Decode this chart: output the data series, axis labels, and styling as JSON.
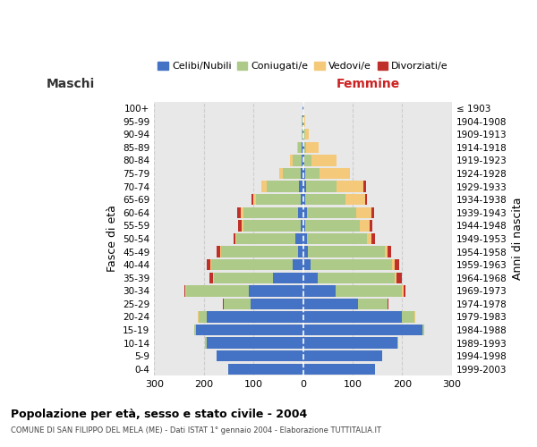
{
  "age_groups": [
    "0-4",
    "5-9",
    "10-14",
    "15-19",
    "20-24",
    "25-29",
    "30-34",
    "35-39",
    "40-44",
    "45-49",
    "50-54",
    "55-59",
    "60-64",
    "65-69",
    "70-74",
    "75-79",
    "80-84",
    "85-89",
    "90-94",
    "95-99",
    "100+"
  ],
  "birth_years": [
    "1999-2003",
    "1994-1998",
    "1989-1993",
    "1984-1988",
    "1979-1983",
    "1974-1978",
    "1969-1973",
    "1964-1968",
    "1959-1963",
    "1954-1958",
    "1949-1953",
    "1944-1948",
    "1939-1943",
    "1934-1938",
    "1929-1933",
    "1924-1928",
    "1919-1923",
    "1914-1918",
    "1909-1913",
    "1904-1908",
    "≤ 1903"
  ],
  "males": {
    "celibi": [
      150,
      175,
      195,
      215,
      195,
      105,
      110,
      60,
      20,
      10,
      15,
      5,
      10,
      5,
      9,
      5,
      3,
      2,
      1,
      1,
      1
    ],
    "coniugati": [
      0,
      0,
      2,
      5,
      15,
      55,
      125,
      120,
      165,
      155,
      120,
      115,
      110,
      90,
      65,
      35,
      18,
      8,
      2,
      1,
      0
    ],
    "vedovi": [
      0,
      0,
      0,
      0,
      2,
      0,
      2,
      2,
      2,
      2,
      2,
      3,
      5,
      5,
      10,
      8,
      5,
      2,
      0,
      0,
      0
    ],
    "divorziati": [
      0,
      0,
      0,
      0,
      0,
      2,
      2,
      6,
      8,
      8,
      3,
      8,
      8,
      3,
      0,
      0,
      0,
      0,
      0,
      0,
      0
    ]
  },
  "females": {
    "nubili": [
      145,
      160,
      190,
      240,
      200,
      110,
      65,
      30,
      15,
      10,
      8,
      5,
      8,
      5,
      7,
      4,
      2,
      2,
      1,
      1,
      1
    ],
    "coniugate": [
      0,
      0,
      2,
      5,
      25,
      60,
      135,
      155,
      165,
      155,
      120,
      110,
      100,
      80,
      60,
      30,
      15,
      5,
      3,
      1,
      0
    ],
    "vedove": [
      0,
      0,
      0,
      0,
      2,
      0,
      2,
      3,
      5,
      5,
      10,
      20,
      30,
      40,
      55,
      60,
      50,
      25,
      8,
      2,
      0
    ],
    "divorziate": [
      0,
      0,
      0,
      0,
      0,
      3,
      5,
      12,
      8,
      8,
      8,
      5,
      5,
      3,
      5,
      0,
      0,
      0,
      0,
      0,
      0
    ]
  },
  "color_celibi": "#4472C4",
  "color_coniugati": "#AECA88",
  "color_vedovi": "#F5C97A",
  "color_divorziati": "#C0302A",
  "xlim": 300,
  "title_main": "Popolazione per età, sesso e stato civile - 2004",
  "title_sub": "COMUNE DI SAN FILIPPO DEL MELA (ME) - Dati ISTAT 1° gennaio 2004 - Elaborazione TUTTITALIA.IT",
  "ylabel_left": "Fasce di età",
  "ylabel_right": "Anni di nascita",
  "label_maschi": "Maschi",
  "label_femmine": "Femmine",
  "legend_celibi": "Celibi/Nubili",
  "legend_coniugati": "Coniugati/e",
  "legend_vedovi": "Vedovi/e",
  "legend_divorziati": "Divorziati/e"
}
